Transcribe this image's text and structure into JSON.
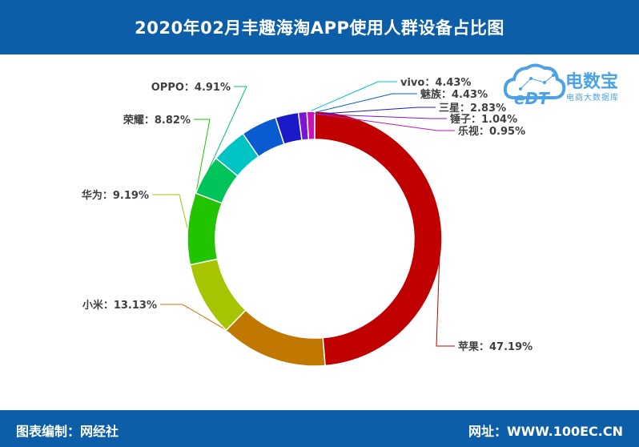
{
  "header": {
    "title": "2020年02月丰趣海淘APP使用人群设备占比图"
  },
  "footer": {
    "left": "图表编制：网经社",
    "right": "网址：WWW.100EC.CN"
  },
  "logo": {
    "title": "电数宝",
    "subtitle": "电商大数据库",
    "mark_text": "eDT"
  },
  "chart_data": {
    "type": "pie",
    "style": "donut",
    "title": "2020年02月丰趣海淘APP使用人群设备占比图",
    "slices": [
      {
        "name": "苹果",
        "value": 47.19,
        "display": "苹果：47.19%",
        "color": "#c00000"
      },
      {
        "name": "小米",
        "value": 13.13,
        "display": "小米：13.13%",
        "color": "#c07800"
      },
      {
        "name": "华为",
        "value": 9.19,
        "display": "华为：9.19%",
        "color": "#a6c400"
      },
      {
        "name": "荣耀",
        "value": 8.82,
        "display": "荣耀：8.82%",
        "color": "#22c400"
      },
      {
        "name": "OPPO",
        "value": 4.91,
        "display": "OPPO：4.91%",
        "color": "#00c45a"
      },
      {
        "name": "vivo",
        "value": 4.43,
        "display": "vivo：4.43%",
        "color": "#00c4c4"
      },
      {
        "name": "魅族",
        "value": 4.43,
        "display": "魅族：4.43%",
        "color": "#0a5ad2"
      },
      {
        "name": "三星",
        "value": 2.83,
        "display": "三星：2.83%",
        "color": "#1a1ac8"
      },
      {
        "name": "锤子",
        "value": 1.04,
        "display": "锤子：1.04%",
        "color": "#7a16d2"
      },
      {
        "name": "乐视",
        "value": 0.95,
        "display": "乐视：0.95%",
        "color": "#c416b4"
      }
    ]
  }
}
